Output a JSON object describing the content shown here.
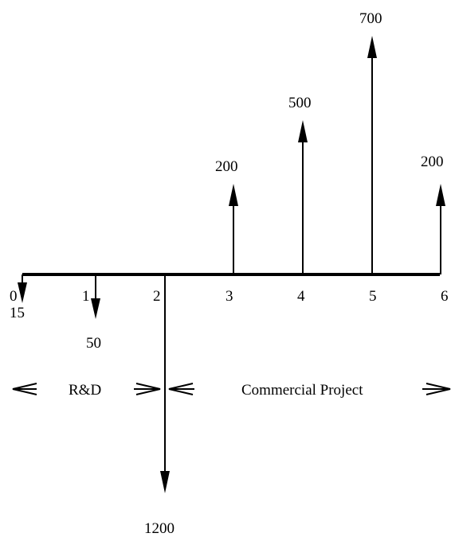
{
  "cash_flows": [
    {
      "period": "0",
      "amount": "15",
      "direction": "out"
    },
    {
      "period": "1",
      "amount": "50",
      "direction": "out"
    },
    {
      "period": "2",
      "amount": "1200",
      "direction": "out"
    },
    {
      "period": "3",
      "amount": "200",
      "direction": "in"
    },
    {
      "period": "4",
      "amount": "500",
      "direction": "in"
    },
    {
      "period": "5",
      "amount": "700",
      "direction": "in"
    },
    {
      "period": "6",
      "amount": "200",
      "direction": "in"
    }
  ],
  "phases": {
    "rd_label": "R&D",
    "commercial_label": "Commercial Project"
  },
  "colors": {
    "ink": "#000000",
    "background": "#ffffff"
  }
}
